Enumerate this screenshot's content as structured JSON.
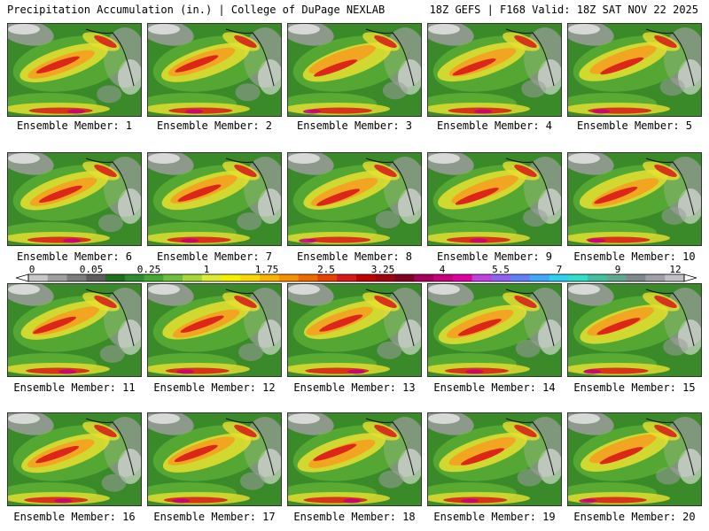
{
  "header": {
    "left": "Precipitation Accumulation (in.) | College of DuPage NEXLAB",
    "right": "18Z GEFS | F168 Valid: 18Z SAT NOV 22 2025"
  },
  "panels": [
    {
      "caption": "Ensemble Member: 1"
    },
    {
      "caption": "Ensemble Member: 2"
    },
    {
      "caption": "Ensemble Member: 3"
    },
    {
      "caption": "Ensemble Member: 4"
    },
    {
      "caption": "Ensemble Member: 5"
    },
    {
      "caption": "Ensemble Member: 6"
    },
    {
      "caption": "Ensemble Member: 7"
    },
    {
      "caption": "Ensemble Member: 8"
    },
    {
      "caption": "Ensemble Member: 9"
    },
    {
      "caption": "Ensemble Member: 10"
    },
    {
      "caption": "Ensemble Member: 11"
    },
    {
      "caption": "Ensemble Member: 12"
    },
    {
      "caption": "Ensemble Member: 13"
    },
    {
      "caption": "Ensemble Member: 14"
    },
    {
      "caption": "Ensemble Member: 15"
    },
    {
      "caption": "Ensemble Member: 16"
    },
    {
      "caption": "Ensemble Member: 17"
    },
    {
      "caption": "Ensemble Member: 18"
    },
    {
      "caption": "Ensemble Member: 19"
    },
    {
      "caption": "Ensemble Member: 20"
    }
  ],
  "colorbar": {
    "labels": [
      "0",
      "0.05",
      "0.25",
      "1",
      "1.75",
      "2.5",
      "3.25",
      "4",
      "5.5",
      "7",
      "9",
      "12"
    ],
    "colors": [
      "#c8c8c8",
      "#a0a0a0",
      "#7c7c7c",
      "#5c5c5c",
      "#1e6e1e",
      "#2e8b2e",
      "#46a832",
      "#6cc03a",
      "#a8d838",
      "#dcec30",
      "#f4f000",
      "#f8d800",
      "#f8b400",
      "#f89000",
      "#f06a00",
      "#e84000",
      "#d81818",
      "#c00000",
      "#a00010",
      "#800020",
      "#a8005a",
      "#c8007c",
      "#e000a0",
      "#c040e0",
      "#9060f0",
      "#6080f8",
      "#40a8f8",
      "#30d0f0",
      "#30e0c8",
      "#40c0a0",
      "#60a890",
      "#808890",
      "#a0a0a8",
      "#c0c0c8"
    ]
  },
  "map_colors": {
    "ocean": "#3a8a2a",
    "light_green": "#6cc03a",
    "yellow": "#e8e030",
    "orange": "#f4a020",
    "red": "#d81818",
    "purple": "#c8007c",
    "gray": "#9c9c9c",
    "white": "#e8e8e8"
  }
}
